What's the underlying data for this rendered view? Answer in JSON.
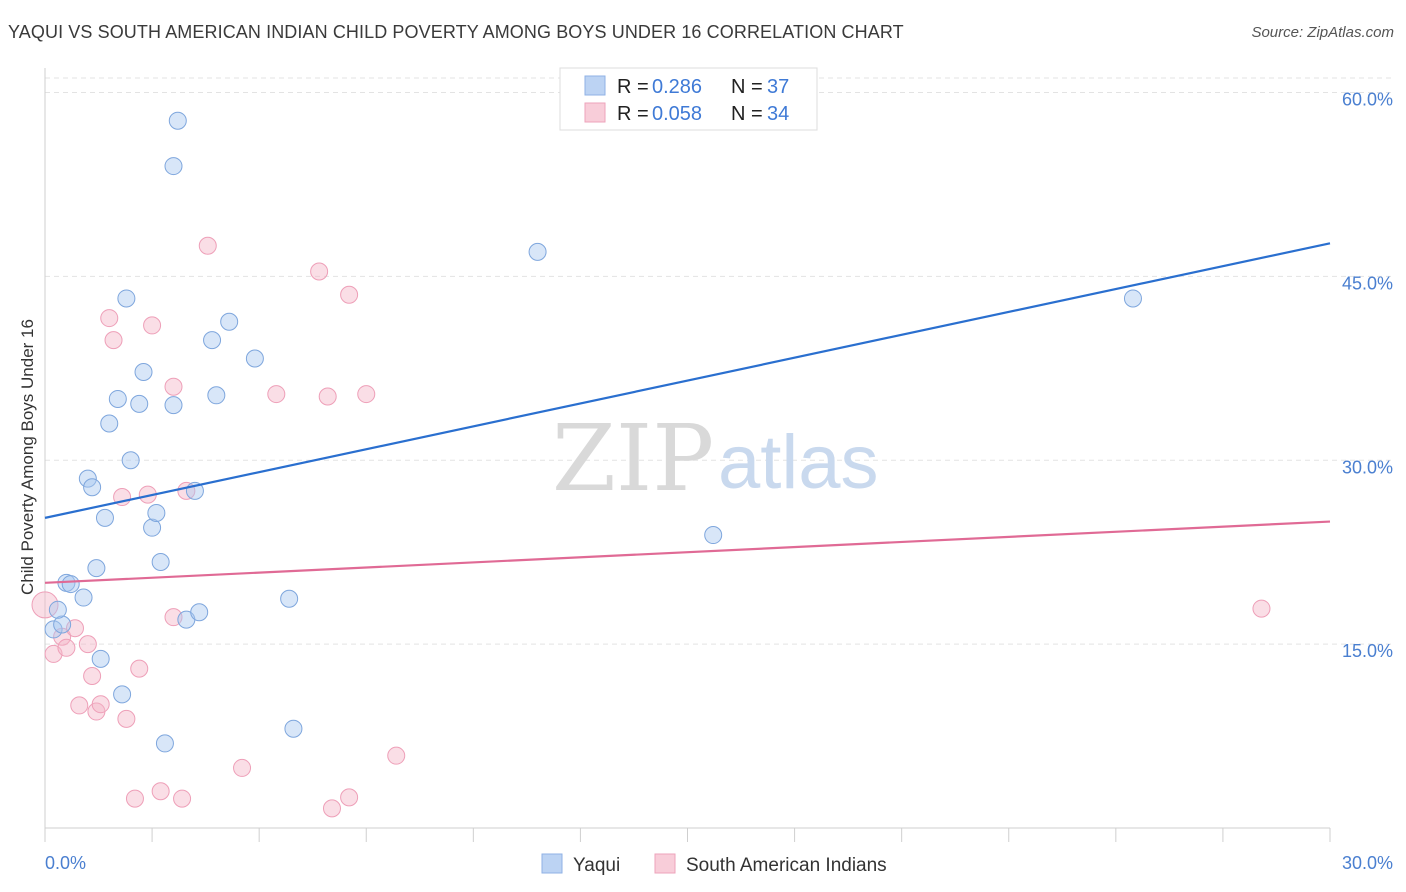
{
  "title": "YAQUI VS SOUTH AMERICAN INDIAN CHILD POVERTY AMONG BOYS UNDER 16 CORRELATION CHART",
  "source": "Source: ZipAtlas.com",
  "watermark": {
    "zip": "ZIP",
    "atlas": "atlas"
  },
  "legend": {
    "rows": [
      {
        "r_label": "R =",
        "r_value": "0.286",
        "n_label": "N =",
        "n_value": "37"
      },
      {
        "r_label": "R =",
        "r_value": "0.058",
        "n_label": "N =",
        "n_value": "34"
      }
    ]
  },
  "chart_data": {
    "type": "scatter",
    "title": "YAQUI VS SOUTH AMERICAN INDIAN CHILD POVERTY AMONG BOYS UNDER 16 CORRELATION CHART",
    "xlabel": "",
    "ylabel": "Child Poverty Among Boys Under 16",
    "xlim": [
      0,
      30
    ],
    "ylim": [
      0,
      62
    ],
    "x_tick_labels": [
      "0.0%",
      "30.0%"
    ],
    "y_ticks": [
      15,
      30,
      45,
      60
    ],
    "y_tick_labels": [
      "15.0%",
      "30.0%",
      "45.0%",
      "60.0%"
    ],
    "grid": true,
    "colors": {
      "Yaqui": "#a8c8f0",
      "South American Indians": "#f4b6c8",
      "Yaqui_line": "#2a6fcf",
      "South American Indians_line": "#e06a95"
    },
    "series": [
      {
        "name": "Yaqui",
        "trend": {
          "x": [
            0,
            30
          ],
          "y": [
            25.3,
            47.7
          ]
        },
        "points": [
          [
            0.2,
            16.2
          ],
          [
            0.4,
            16.6
          ],
          [
            0.5,
            20.0
          ],
          [
            0.6,
            19.9
          ],
          [
            0.9,
            18.8
          ],
          [
            1.0,
            28.5
          ],
          [
            1.1,
            27.8
          ],
          [
            1.2,
            21.2
          ],
          [
            1.3,
            13.8
          ],
          [
            1.4,
            25.3
          ],
          [
            1.5,
            33.0
          ],
          [
            1.7,
            35.0
          ],
          [
            1.8,
            10.9
          ],
          [
            1.9,
            43.2
          ],
          [
            2.0,
            30.0
          ],
          [
            2.2,
            34.6
          ],
          [
            2.3,
            37.2
          ],
          [
            2.5,
            24.5
          ],
          [
            2.6,
            25.7
          ],
          [
            2.7,
            21.7
          ],
          [
            2.8,
            6.9
          ],
          [
            3.0,
            54.0
          ],
          [
            3.0,
            34.5
          ],
          [
            3.1,
            57.7
          ],
          [
            3.3,
            17.0
          ],
          [
            3.5,
            27.5
          ],
          [
            3.6,
            17.6
          ],
          [
            3.9,
            39.8
          ],
          [
            4.0,
            35.3
          ],
          [
            4.3,
            41.3
          ],
          [
            4.9,
            38.3
          ],
          [
            5.7,
            18.7
          ],
          [
            5.8,
            8.1
          ],
          [
            11.5,
            47.0
          ],
          [
            15.6,
            23.9
          ],
          [
            25.4,
            43.2
          ],
          [
            0.3,
            17.8
          ]
        ]
      },
      {
        "name": "South American Indians",
        "trend": {
          "x": [
            0,
            30
          ],
          "y": [
            20.0,
            25.0
          ]
        },
        "points": [
          [
            0.0,
            18.2
          ],
          [
            0.2,
            14.2
          ],
          [
            0.4,
            15.6
          ],
          [
            0.5,
            14.7
          ],
          [
            0.7,
            16.3
          ],
          [
            0.8,
            10.0
          ],
          [
            1.0,
            15.0
          ],
          [
            1.1,
            12.4
          ],
          [
            1.2,
            9.5
          ],
          [
            1.3,
            10.1
          ],
          [
            1.5,
            41.6
          ],
          [
            1.6,
            39.8
          ],
          [
            1.8,
            27.0
          ],
          [
            1.9,
            8.9
          ],
          [
            2.1,
            2.4
          ],
          [
            2.2,
            13.0
          ],
          [
            2.4,
            27.2
          ],
          [
            2.5,
            41.0
          ],
          [
            2.7,
            3.0
          ],
          [
            3.0,
            36.0
          ],
          [
            3.0,
            17.2
          ],
          [
            3.2,
            2.4
          ],
          [
            3.3,
            27.5
          ],
          [
            3.8,
            47.5
          ],
          [
            4.6,
            4.9
          ],
          [
            5.4,
            35.4
          ],
          [
            6.4,
            45.4
          ],
          [
            6.6,
            35.2
          ],
          [
            6.7,
            1.6
          ],
          [
            7.1,
            43.5
          ],
          [
            7.1,
            2.5
          ],
          [
            7.5,
            35.4
          ],
          [
            8.2,
            5.9
          ],
          [
            28.4,
            17.9
          ]
        ]
      }
    ]
  },
  "bottom_legend": {
    "items": [
      "Yaqui",
      "South American Indians"
    ]
  }
}
